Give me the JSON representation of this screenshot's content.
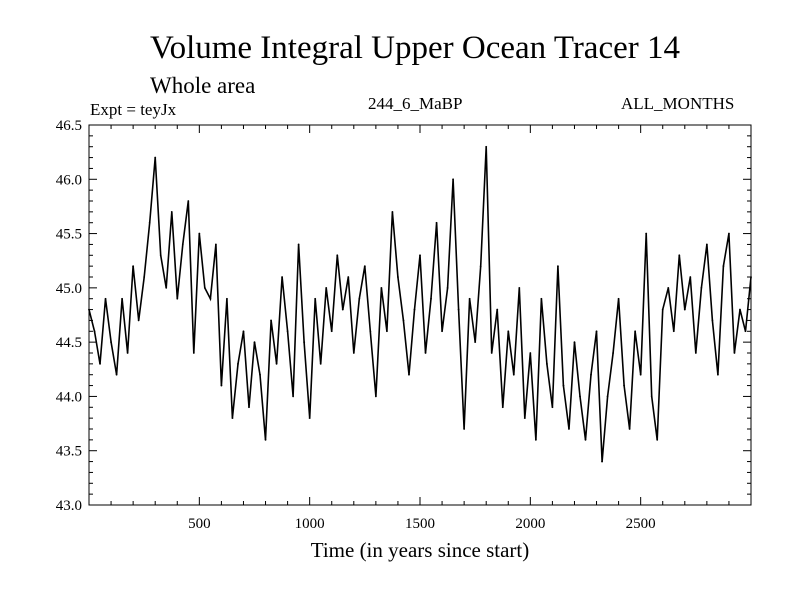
{
  "chart_data": {
    "type": "line",
    "title": "Volume Integral Upper Ocean Tracer 14",
    "subtitle": "Whole area",
    "experiment_label": "Expt = teyJx",
    "run_label": "244_6_MaBP",
    "months_label": "ALL_MONTHS",
    "xlabel": "Time (in years since start)",
    "ylabel": "",
    "xlim": [
      0,
      3000
    ],
    "ylim": [
      43.0,
      46.5
    ],
    "x_ticks": [
      500,
      1000,
      1500,
      2000,
      2500
    ],
    "y_ticks": [
      43.0,
      43.5,
      44.0,
      44.5,
      45.0,
      45.5,
      46.0,
      46.5
    ],
    "y_tick_labels": [
      "43.0",
      "43.5",
      "44.0",
      "44.5",
      "45.0",
      "45.5",
      "46.0",
      "46.5"
    ],
    "grid": false,
    "series": [
      {
        "name": "Tracer 14",
        "x": [
          0,
          25,
          50,
          75,
          100,
          125,
          150,
          175,
          200,
          225,
          250,
          275,
          300,
          325,
          350,
          375,
          400,
          425,
          450,
          475,
          500,
          525,
          550,
          575,
          600,
          625,
          650,
          675,
          700,
          725,
          750,
          775,
          800,
          825,
          850,
          875,
          900,
          925,
          950,
          975,
          1000,
          1025,
          1050,
          1075,
          1100,
          1125,
          1150,
          1175,
          1200,
          1225,
          1250,
          1275,
          1300,
          1325,
          1350,
          1375,
          1400,
          1425,
          1450,
          1475,
          1500,
          1525,
          1550,
          1575,
          1600,
          1625,
          1650,
          1675,
          1700,
          1725,
          1750,
          1775,
          1800,
          1825,
          1850,
          1875,
          1900,
          1925,
          1950,
          1975,
          2000,
          2025,
          2050,
          2075,
          2100,
          2125,
          2150,
          2175,
          2200,
          2225,
          2250,
          2275,
          2300,
          2325,
          2350,
          2375,
          2400,
          2425,
          2450,
          2475,
          2500,
          2525,
          2550,
          2575,
          2600,
          2625,
          2650,
          2675,
          2700,
          2725,
          2750,
          2775,
          2800,
          2825,
          2850,
          2875,
          2900,
          2925,
          2950,
          2975,
          3000
        ],
        "values": [
          44.8,
          44.6,
          44.3,
          44.9,
          44.5,
          44.2,
          44.9,
          44.4,
          45.2,
          44.7,
          45.1,
          45.6,
          46.2,
          45.3,
          45.0,
          45.7,
          44.9,
          45.4,
          45.8,
          44.4,
          45.5,
          45.0,
          44.9,
          45.4,
          44.1,
          44.9,
          43.8,
          44.3,
          44.6,
          43.9,
          44.5,
          44.2,
          43.6,
          44.7,
          44.3,
          45.1,
          44.6,
          44.0,
          45.4,
          44.5,
          43.8,
          44.9,
          44.3,
          45.0,
          44.6,
          45.3,
          44.8,
          45.1,
          44.4,
          44.9,
          45.2,
          44.6,
          44.0,
          45.0,
          44.6,
          45.7,
          45.1,
          44.7,
          44.2,
          44.8,
          45.3,
          44.4,
          44.9,
          45.6,
          44.6,
          45.0,
          46.0,
          44.8,
          43.7,
          44.9,
          44.5,
          45.2,
          46.3,
          44.4,
          44.8,
          43.9,
          44.6,
          44.2,
          45.0,
          43.8,
          44.4,
          43.6,
          44.9,
          44.3,
          43.9,
          45.2,
          44.1,
          43.7,
          44.5,
          44.0,
          43.6,
          44.2,
          44.6,
          43.4,
          44.0,
          44.4,
          44.9,
          44.1,
          43.7,
          44.6,
          44.2,
          45.5,
          44.0,
          43.6,
          44.8,
          45.0,
          44.6,
          45.3,
          44.8,
          45.1,
          44.4,
          45.0,
          45.4,
          44.7,
          44.2,
          45.2,
          45.5,
          44.4,
          44.8,
          44.6,
          45.1
        ]
      }
    ]
  }
}
